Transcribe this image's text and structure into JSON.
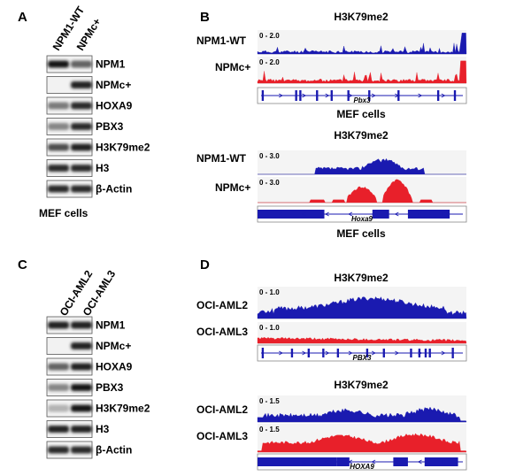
{
  "panels": {
    "A": {
      "letter": "A",
      "lanes": [
        "NPM1-WT",
        "NPMc+"
      ],
      "bands": [
        "NPM1",
        "NPMc+",
        "HOXA9",
        "PBX3",
        "H3K79me2",
        "H3",
        "β-Actin"
      ],
      "caption": "MEF cells"
    },
    "B": {
      "letter": "B",
      "top": {
        "title": "H3K79me2",
        "tracks": [
          {
            "label": "NPM1-WT",
            "scale": "0 - 2.0",
            "color": "#1a1ab0"
          },
          {
            "label": "NPMc+",
            "scale": "0 - 2.0",
            "color": "#e8202a"
          }
        ],
        "gene": "Pbx3",
        "caption": "MEF cells"
      },
      "bottom": {
        "title": "H3K79me2",
        "tracks": [
          {
            "label": "NPM1-WT",
            "scale": "0 - 3.0",
            "color": "#1a1ab0"
          },
          {
            "label": "NPMc+",
            "scale": "0 - 3.0",
            "color": "#e8202a"
          }
        ],
        "gene": "Hoxa9",
        "caption": "MEF cells"
      }
    },
    "C": {
      "letter": "C",
      "lanes": [
        "OCI-AML2",
        "OCI-AML3"
      ],
      "bands": [
        "NPM1",
        "NPMc+",
        "HOXA9",
        "PBX3",
        "H3K79me2",
        "H3",
        "β-Actin"
      ]
    },
    "D": {
      "letter": "D",
      "top": {
        "title": "H3K79me2",
        "tracks": [
          {
            "label": "OCI-AML2",
            "scale": "0 - 1.0",
            "color": "#1a1ab0"
          },
          {
            "label": "OCI-AML3",
            "scale": "0 - 1.0",
            "color": "#e8202a"
          }
        ],
        "gene": "PBX3"
      },
      "bottom": {
        "title": "H3K79me2",
        "tracks": [
          {
            "label": "OCI-AML2",
            "scale": "0 - 1.5",
            "color": "#1a1ab0"
          },
          {
            "label": "OCI-AML3",
            "scale": "0 - 1.5",
            "color": "#e8202a"
          }
        ],
        "gene": "HOXA9"
      }
    }
  }
}
